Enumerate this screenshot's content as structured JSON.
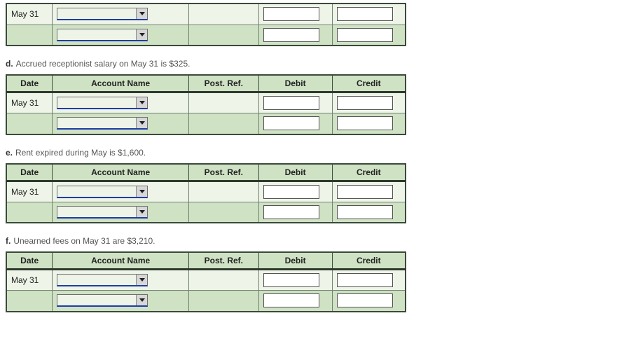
{
  "columns": {
    "date": "Date",
    "account": "Account Name",
    "postref": "Post. Ref.",
    "debit": "Debit",
    "credit": "Credit"
  },
  "defaultDate": "May 31",
  "sections": [
    {
      "id": "c_partial",
      "letter": "",
      "prompt": "",
      "showHeader": false,
      "rows": [
        {
          "date": "May 31",
          "rowClass": "row-light"
        },
        {
          "date": "",
          "rowClass": "row-dark"
        }
      ]
    },
    {
      "id": "d",
      "letter": "d.",
      "prompt": "Accrued receptionist salary on May 31 is $325.",
      "showHeader": true,
      "rows": [
        {
          "date": "May 31",
          "rowClass": "row-light"
        },
        {
          "date": "",
          "rowClass": "row-dark"
        }
      ]
    },
    {
      "id": "e",
      "letter": "e.",
      "prompt": "Rent expired during May is $1,600.",
      "showHeader": true,
      "rows": [
        {
          "date": "May 31",
          "rowClass": "row-light"
        },
        {
          "date": "",
          "rowClass": "row-dark"
        }
      ]
    },
    {
      "id": "f",
      "letter": "f.",
      "prompt": "Unearned fees on May 31 are $3,210.",
      "showHeader": true,
      "rows": [
        {
          "date": "May 31",
          "rowClass": "row-light"
        },
        {
          "date": "",
          "rowClass": "row-dark"
        }
      ]
    }
  ]
}
